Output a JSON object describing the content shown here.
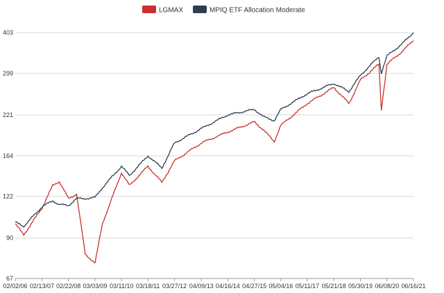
{
  "chart_data": {
    "type": "line",
    "title": "",
    "xlabel": "",
    "ylabel": "",
    "y_scale": "log",
    "ylim": [
      67,
      403
    ],
    "y_ticks": [
      "67",
      "90",
      "122",
      "164",
      "221",
      "299",
      "403"
    ],
    "x_ticks": [
      "02/02/06",
      "02/13/07",
      "02/22/08",
      "03/03/09",
      "03/11/10",
      "03/18/11",
      "03/27/12",
      "04/09/13",
      "04/16/14",
      "04/27/15",
      "05/04/16",
      "05/11/17",
      "05/21/18",
      "05/30/19",
      "06/08/20",
      "06/16/21"
    ],
    "grid": "horizontal",
    "legend_position": "top-center",
    "series": [
      {
        "name": "LGMAX",
        "color": "#c9302c",
        "x": [
          "02/02/06",
          "06/01/06",
          "02/13/07",
          "07/15/07",
          "10/15/07",
          "02/22/08",
          "06/15/08",
          "10/15/08",
          "03/03/09",
          "06/15/09",
          "03/11/10",
          "07/01/10",
          "03/18/11",
          "10/01/11",
          "03/27/12",
          "04/09/13",
          "04/16/14",
          "04/27/15",
          "09/01/15",
          "02/01/16",
          "05/04/16",
          "05/11/17",
          "05/21/18",
          "12/20/18",
          "05/30/19",
          "02/15/20",
          "03/20/20",
          "06/08/20",
          "12/31/20",
          "06/16/21"
        ],
        "values": [
          100,
          92,
          112,
          132,
          136,
          120,
          124,
          80,
          75,
          100,
          145,
          132,
          152,
          135,
          158,
          180,
          195,
          210,
          198,
          182,
          205,
          240,
          270,
          240,
          285,
          320,
          230,
          320,
          350,
          380
        ]
      },
      {
        "name": "MPIQ ETF Allocation Moderate",
        "color": "#2c3e50",
        "x": [
          "02/02/06",
          "06/01/06",
          "02/13/07",
          "07/15/07",
          "10/15/07",
          "02/22/08",
          "06/15/08",
          "10/15/08",
          "03/03/09",
          "06/15/09",
          "03/11/10",
          "07/01/10",
          "03/18/11",
          "10/01/11",
          "03/27/12",
          "04/09/13",
          "04/16/14",
          "04/27/15",
          "09/01/15",
          "02/01/16",
          "05/04/16",
          "05/11/17",
          "05/21/18",
          "12/20/18",
          "05/30/19",
          "02/15/20",
          "03/20/20",
          "06/08/20",
          "12/31/20",
          "06/16/21"
        ],
        "values": [
          101,
          98,
          113,
          118,
          115,
          114,
          120,
          120,
          121,
          130,
          152,
          142,
          164,
          150,
          180,
          200,
          221,
          230,
          218,
          212,
          230,
          258,
          278,
          262,
          295,
          338,
          300,
          340,
          370,
          403
        ]
      }
    ]
  }
}
